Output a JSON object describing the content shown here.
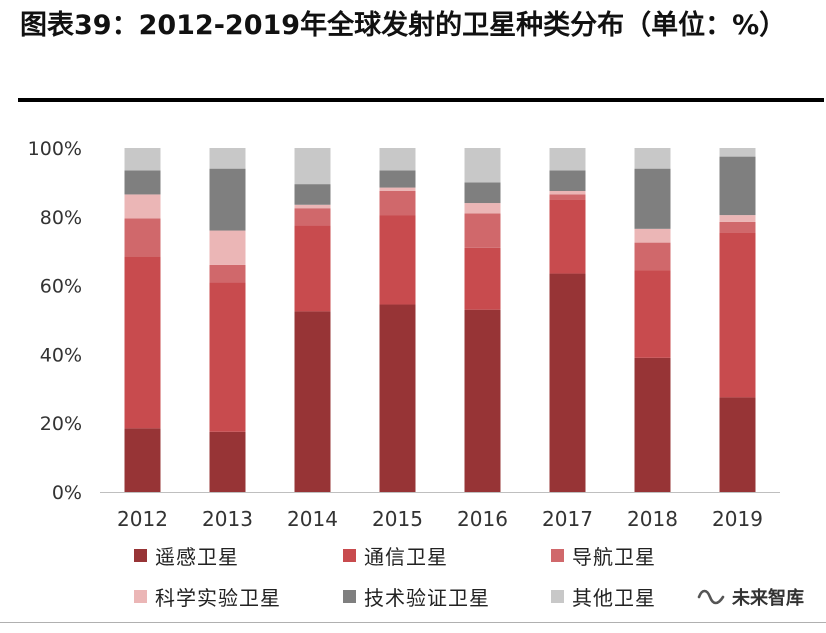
{
  "title": "图表39：2012-2019年全球发射的卫星种类分布（单位：%）",
  "watermark": {
    "icon": "wechat-channel-icon",
    "text": "未来智库"
  },
  "chart_data": {
    "type": "bar",
    "stacked": true,
    "categories": [
      "2012",
      "2013",
      "2014",
      "2015",
      "2016",
      "2017",
      "2018",
      "2019"
    ],
    "ylim": [
      0,
      100
    ],
    "yticks": [
      "0%",
      "20%",
      "40%",
      "60%",
      "80%",
      "100%"
    ],
    "grid": false,
    "legend_position": "bottom",
    "series": [
      {
        "name": "遥感卫星",
        "color": "#973436",
        "values": [
          18.5,
          17.5,
          52.5,
          54.5,
          53,
          63.5,
          39,
          27.5
        ]
      },
      {
        "name": "通信卫星",
        "color": "#c84b4e",
        "values": [
          50,
          43.5,
          25,
          26,
          18,
          21.5,
          25.5,
          48
        ]
      },
      {
        "name": "导航卫星",
        "color": "#d0686b",
        "values": [
          11,
          5,
          5,
          7,
          10,
          1.5,
          8,
          3
        ]
      },
      {
        "name": "科学实验卫星",
        "color": "#ebb6b6",
        "values": [
          7,
          10,
          1,
          1,
          3,
          1,
          4,
          2
        ]
      },
      {
        "name": "技术验证卫星",
        "color": "#7f7f7f",
        "values": [
          7,
          18,
          6,
          5,
          6,
          6,
          17.5,
          17
        ]
      },
      {
        "name": "其他卫星",
        "color": "#c8c8c8",
        "values": [
          6.5,
          6,
          10.5,
          6.5,
          10,
          6.5,
          6,
          2.5
        ]
      }
    ]
  }
}
